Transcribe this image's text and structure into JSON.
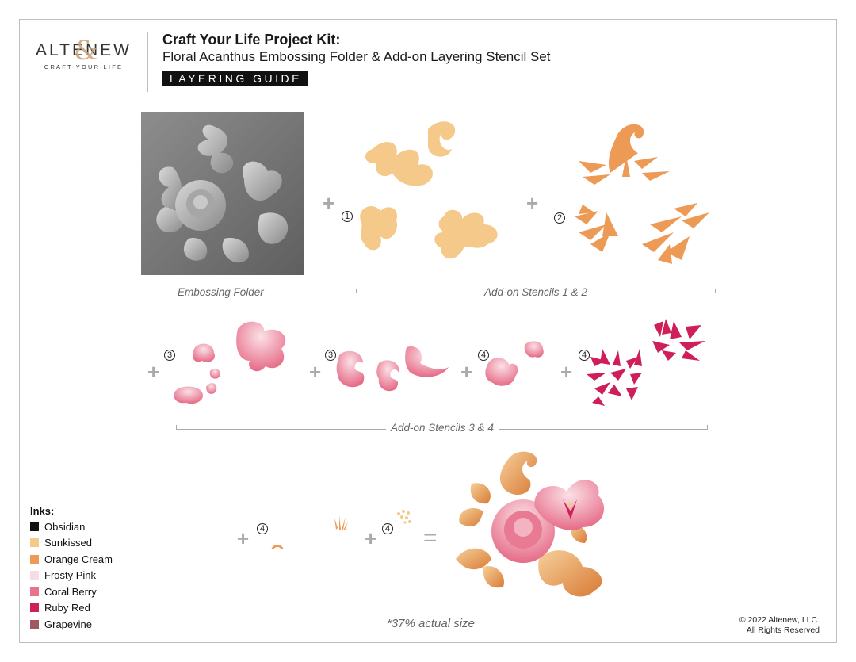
{
  "logo": {
    "wordmark": "ALTENEW",
    "tagline": "CRAFT YOUR LIFE"
  },
  "header": {
    "title_line1": "Craft Your Life Project Kit:",
    "title_line2": "Floral Acanthus Embossing Folder & Add-on Layering Stencil Set",
    "badge": "LAYERING GUIDE"
  },
  "captions": {
    "embossing_folder": "Embossing Folder",
    "stencils_1_2": "Add-on Stencils 1 & 2",
    "stencils_3_4": "Add-on Stencils 3 & 4"
  },
  "step_numbers": {
    "one": "1",
    "two": "2",
    "three": "3",
    "four": "4"
  },
  "symbols": {
    "plus": "+",
    "equals": "="
  },
  "inks": {
    "title": "Inks:",
    "items": [
      {
        "name": "Obsidian",
        "color": "#111111"
      },
      {
        "name": "Sunkissed",
        "color": "#f4c98a"
      },
      {
        "name": "Orange Cream",
        "color": "#ec9a55"
      },
      {
        "name": "Frosty Pink",
        "color": "#f5dde3"
      },
      {
        "name": "Coral Berry",
        "color": "#e7748c"
      },
      {
        "name": "Ruby Red",
        "color": "#cf1f58"
      },
      {
        "name": "Grapevine",
        "color": "#9e5a60"
      }
    ]
  },
  "footnote": "*37% actual size",
  "copyright": {
    "line1": "© 2022 Altenew, LLC.",
    "line2": "All Rights Reserved"
  }
}
